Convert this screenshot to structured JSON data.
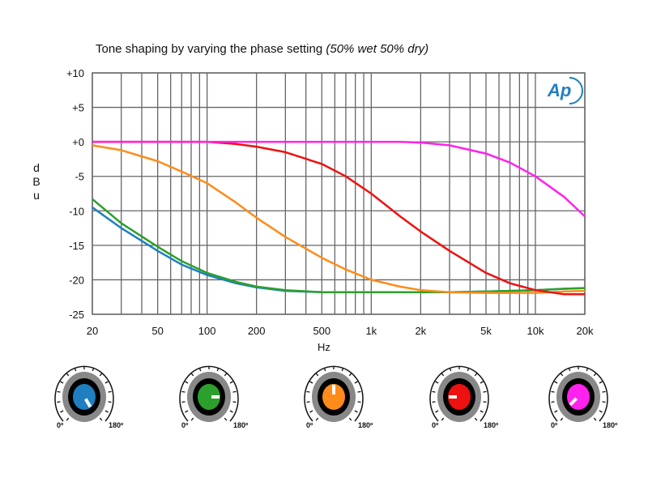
{
  "chart_data": {
    "type": "line",
    "title": "Tone shaping by varying the phase setting",
    "title_italic": "(50% wet 50% dry)",
    "xlabel": "Hz",
    "ylabel": [
      "d",
      "B",
      "u"
    ],
    "xscale": "log",
    "xlim": [
      20,
      20000
    ],
    "ylim": [
      -25,
      10
    ],
    "grid": true,
    "xticks": [
      {
        "v": 20,
        "label": "20"
      },
      {
        "v": 50,
        "label": "50"
      },
      {
        "v": 100,
        "label": "100"
      },
      {
        "v": 200,
        "label": "200"
      },
      {
        "v": 500,
        "label": "500"
      },
      {
        "v": 1000,
        "label": "1k"
      },
      {
        "v": 2000,
        "label": "2k"
      },
      {
        "v": 5000,
        "label": "5k"
      },
      {
        "v": 10000,
        "label": "10k"
      },
      {
        "v": 20000,
        "label": "20k"
      }
    ],
    "yticks": [
      {
        "v": 10,
        "label": "+10"
      },
      {
        "v": 5,
        "label": "+5"
      },
      {
        "v": 0,
        "label": "+0"
      },
      {
        "v": -5,
        "label": "-5"
      },
      {
        "v": -10,
        "label": "-10"
      },
      {
        "v": -15,
        "label": "-15"
      },
      {
        "v": -20,
        "label": "-20"
      },
      {
        "v": -25,
        "label": "-25"
      }
    ],
    "x": [
      20,
      30,
      50,
      70,
      100,
      150,
      200,
      300,
      500,
      700,
      1000,
      1500,
      2000,
      3000,
      5000,
      7000,
      10000,
      15000,
      20000
    ],
    "series": [
      {
        "name": "blue",
        "color": "#1f7fc0",
        "values": [
          -9.5,
          -12.5,
          -15.8,
          -17.8,
          -19.3,
          -20.5,
          -21.1,
          -21.6,
          -21.8,
          -21.8,
          -21.8,
          -21.8,
          -21.8,
          -21.8,
          -21.7,
          -21.6,
          -21.5,
          -21.3,
          -21.2
        ]
      },
      {
        "name": "green",
        "color": "#2ca02c",
        "values": [
          -8.3,
          -11.8,
          -15.2,
          -17.3,
          -19.0,
          -20.3,
          -21.0,
          -21.5,
          -21.8,
          -21.8,
          -21.8,
          -21.8,
          -21.8,
          -21.8,
          -21.7,
          -21.6,
          -21.5,
          -21.3,
          -21.2
        ]
      },
      {
        "name": "orange",
        "color": "#ff8c1a",
        "values": [
          -0.5,
          -1.2,
          -2.8,
          -4.3,
          -6.0,
          -8.8,
          -11.0,
          -13.8,
          -16.8,
          -18.5,
          -20.0,
          -21.0,
          -21.5,
          -21.8,
          -21.9,
          -21.9,
          -21.9,
          -21.7,
          -21.6
        ]
      },
      {
        "name": "red",
        "color": "#ee1111",
        "values": [
          0,
          0,
          0,
          0,
          0,
          -0.3,
          -0.7,
          -1.5,
          -3.2,
          -5.0,
          -7.5,
          -10.8,
          -13.0,
          -15.8,
          -19.0,
          -20.5,
          -21.5,
          -22.1,
          -22.1
        ]
      },
      {
        "name": "magenta",
        "color": "#ff22ee",
        "values": [
          0,
          0,
          0,
          0,
          0,
          0,
          0,
          0,
          0,
          0,
          0,
          0,
          -0.1,
          -0.5,
          -1.7,
          -3.0,
          -5.0,
          -8.0,
          -10.8
        ]
      }
    ]
  },
  "logo": "Ap",
  "knobs": [
    {
      "color": "#1f7fc0",
      "pointer_deg": 145,
      "min_label": "0º",
      "max_label": "180º"
    },
    {
      "color": "#2ca02c",
      "pointer_deg": 90,
      "min_label": "0º",
      "max_label": "180º"
    },
    {
      "color": "#ff8c1a",
      "pointer_deg": 0,
      "min_label": "0º",
      "max_label": "180º"
    },
    {
      "color": "#ee1111",
      "pointer_deg": -90,
      "min_label": "0º",
      "max_label": "180º"
    },
    {
      "color": "#ff22ee",
      "pointer_deg": -130,
      "min_label": "0º",
      "max_label": "180º"
    }
  ]
}
